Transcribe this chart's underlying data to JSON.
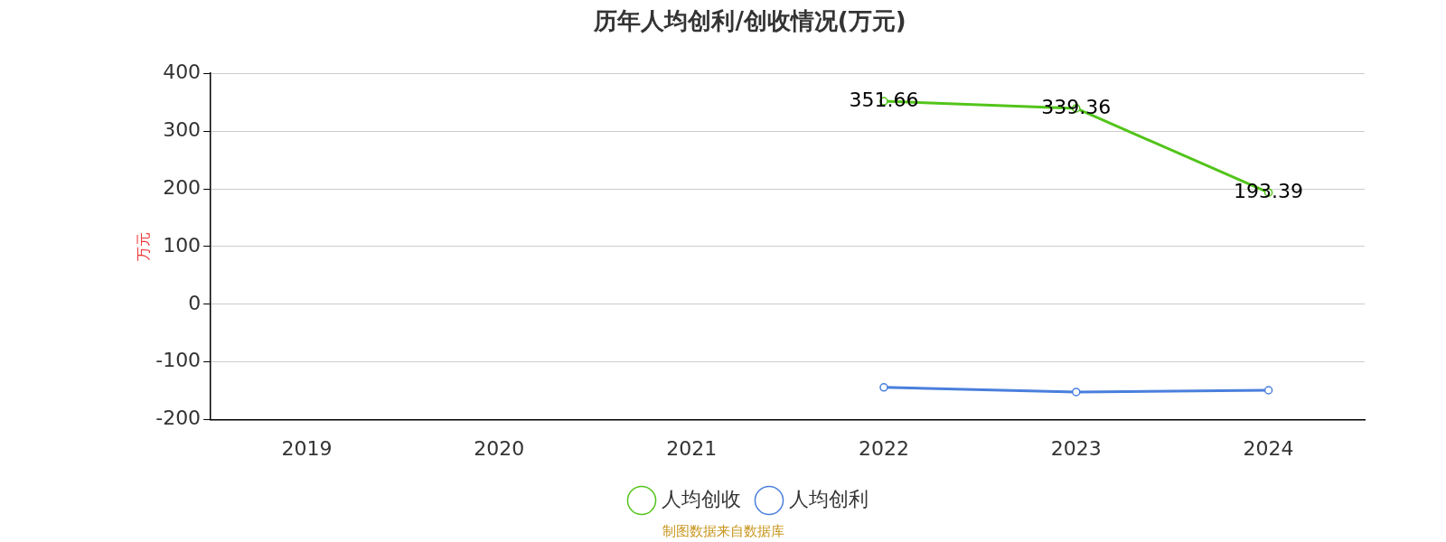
{
  "chart_data": {
    "type": "line",
    "title": "历年人均创利/创收情况(万元)",
    "ylabel": "万元",
    "categories": [
      "2019",
      "2020",
      "2021",
      "2022",
      "2023",
      "2024"
    ],
    "series": [
      {
        "name": "人均创收",
        "color": "#52c41a",
        "values": [
          null,
          null,
          null,
          351.66,
          339.36,
          193.39
        ],
        "value_labels": [
          null,
          null,
          null,
          "351.66",
          "339.36",
          "193.39"
        ]
      },
      {
        "name": "人均创利",
        "color": "#4a7fdc",
        "values": [
          null,
          null,
          null,
          -144,
          -152,
          -149
        ]
      }
    ],
    "ylim": [
      -200,
      400
    ],
    "yticks": [
      -200,
      -100,
      0,
      100,
      200,
      300,
      400
    ],
    "grid": "y",
    "legend": "bottom",
    "marker": "circle",
    "line_style": "solid",
    "annotations": [
      "制图数据来自数据库"
    ]
  }
}
